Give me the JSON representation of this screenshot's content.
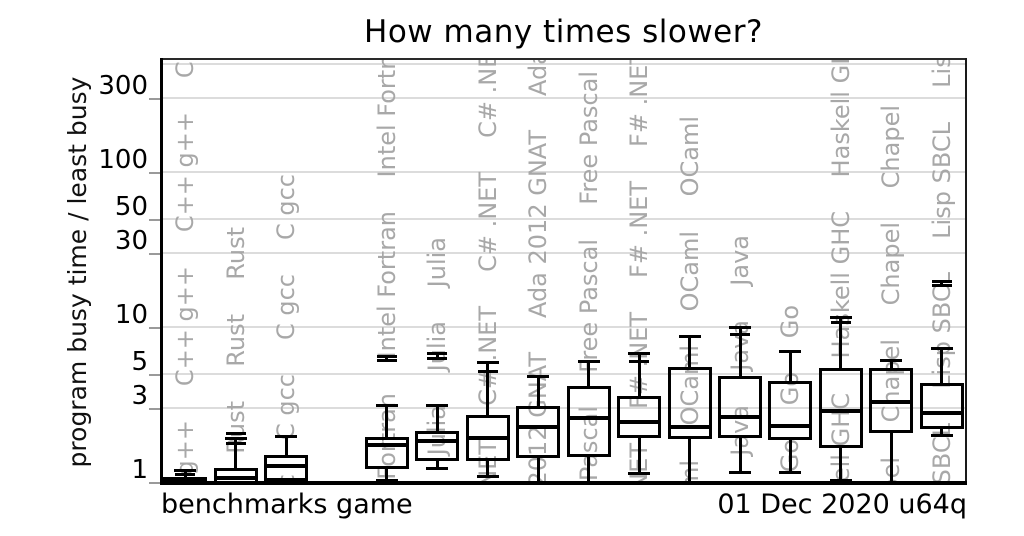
{
  "title": "How many times slower?",
  "y_axis": {
    "label": "program busy time / least busy",
    "ticks": [
      300,
      100,
      50,
      30,
      10,
      5,
      3,
      1
    ],
    "gridlines": [
      500,
      300,
      100,
      50,
      30,
      10,
      5,
      3
    ]
  },
  "footer": {
    "left": "benchmarks game",
    "right": "01 Dec 2020 u64q"
  },
  "colors": {
    "ink": "#000000",
    "watermark_gray": "#a8a8a8",
    "grid_gray": "#dcdcdc"
  },
  "chart_data": {
    "type": "boxplot",
    "title": "How many times slower?",
    "ylabel": "program busy time / least busy",
    "log_scale": true,
    "ylim": [
      0.96,
      550
    ],
    "grid": true,
    "columns": [
      {
        "label": "C++ g++",
        "whisker_low": null,
        "q1": 1.0,
        "median": null,
        "q3": 1.08,
        "whisker_high": 1.18,
        "dashes": [
          1.11
        ],
        "stub": null,
        "filled": true
      },
      {
        "label": "Rust",
        "whisker_low": null,
        "q1": 1.0,
        "median": 1.06,
        "q3": 1.23,
        "whisker_high": 1.9,
        "dashes": [
          1.78,
          2.05
        ],
        "stub": null,
        "filled": false
      },
      {
        "label": "C gcc",
        "whisker_low": 1.0,
        "q1": 1.06,
        "median": 1.26,
        "q3": 1.5,
        "whisker_high": 1.97,
        "dashes": [],
        "stub": null,
        "filled": false
      },
      {
        "label": null
      },
      {
        "label": "Intel Fortran",
        "whisker_low": 1.03,
        "q1": 1.26,
        "median": 1.72,
        "q3": 1.94,
        "whisker_high": 3.1,
        "dashes": [
          6.05,
          6.45
        ],
        "stub": [
          5.95,
          6.55
        ],
        "filled": false
      },
      {
        "label": "Julia",
        "whisker_low": 1.23,
        "q1": 1.43,
        "median": 1.83,
        "q3": 2.14,
        "whisker_high": 3.1,
        "dashes": [
          6.3,
          6.75
        ],
        "stub": [
          6.2,
          6.9
        ],
        "filled": false
      },
      {
        "label": "C# .NET",
        "whisker_low": 1.08,
        "q1": 1.43,
        "median": 1.92,
        "q3": 2.72,
        "whisker_high": 5.9,
        "dashes": [
          5.2
        ],
        "stub": null,
        "filled": false
      },
      {
        "label": "Ada 2012 GNAT",
        "whisker_low": 1.0,
        "q1": 1.5,
        "median": 2.27,
        "q3": 3.07,
        "whisker_high": 4.8,
        "dashes": [],
        "stub": null,
        "filled": false
      },
      {
        "label": "Free Pascal",
        "whisker_low": 1.0,
        "q1": 1.52,
        "median": 2.6,
        "q3": 4.14,
        "whisker_high": 6.0,
        "dashes": [],
        "stub": null,
        "filled": false
      },
      {
        "label": "F# .NET",
        "whisker_low": 1.14,
        "q1": 2.02,
        "median": 2.45,
        "q3": 3.57,
        "whisker_high": 6.7,
        "dashes": [
          6.0
        ],
        "stub": null,
        "filled": false
      },
      {
        "label": "OCaml",
        "whisker_low": 1.0,
        "q1": 1.99,
        "median": 2.27,
        "q3": 5.5,
        "whisker_high": 8.7,
        "dashes": [],
        "stub": null,
        "filled": false
      },
      {
        "label": "Java",
        "whisker_low": 1.16,
        "q1": 2.0,
        "median": 2.61,
        "q3": 4.8,
        "whisker_high": 10.0,
        "dashes": [
          8.9
        ],
        "stub": null,
        "filled": false
      },
      {
        "label": "Go",
        "whisker_low": 1.16,
        "q1": 1.96,
        "median": 2.31,
        "q3": 4.5,
        "whisker_high": 7.0,
        "dashes": [],
        "stub": null,
        "filled": false
      },
      {
        "label": "Haskell GHC",
        "whisker_low": 1.03,
        "q1": 1.74,
        "median": 2.85,
        "q3": 5.4,
        "whisker_high": 11.6,
        "dashes": [
          10.7
        ],
        "stub": null,
        "filled": false
      },
      {
        "label": "Chapel",
        "whisker_low": 1.0,
        "q1": 2.15,
        "median": 3.26,
        "q3": 5.45,
        "whisker_high": 6.1,
        "dashes": [],
        "stub": null,
        "filled": false
      },
      {
        "label": "Lisp SBCL",
        "whisker_low": 2.0,
        "q1": 2.31,
        "median": 2.8,
        "q3": 4.33,
        "whisker_high": 7.3,
        "dashes": [
          18.4,
          19.7
        ],
        "stub": [
          18.0,
          20.2
        ],
        "filled": false
      }
    ]
  }
}
